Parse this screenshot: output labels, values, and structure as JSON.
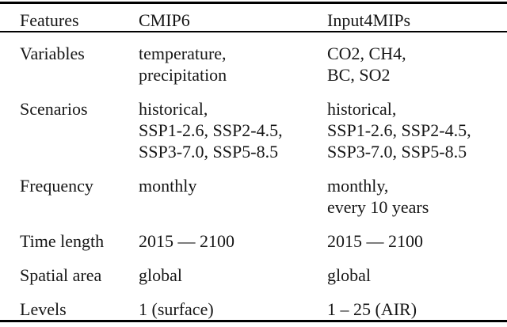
{
  "table": {
    "headers": [
      "Features",
      "CMIP6",
      "Input4MIPs"
    ],
    "rows": [
      {
        "feature": "Variables",
        "cmip6": "temperature,\nprecipitation",
        "input4mips": "CO2, CH4,\nBC, SO2"
      },
      {
        "feature": "Scenarios",
        "cmip6": "historical,\nSSP1-2.6, SSP2-4.5,\nSSP3-7.0, SSP5-8.5",
        "input4mips": "historical,\nSSP1-2.6, SSP2-4.5,\nSSP3-7.0, SSP5-8.5"
      },
      {
        "feature": "Frequency",
        "cmip6": "monthly",
        "input4mips": "monthly,\nevery 10 years"
      },
      {
        "feature": "Time length",
        "cmip6": "2015 — 2100",
        "input4mips": "2015 — 2100"
      },
      {
        "feature": "Spatial area",
        "cmip6": "global",
        "input4mips": "global"
      },
      {
        "feature": "Levels",
        "cmip6": "1 (surface)",
        "input4mips": "1 – 25 (AIR)"
      }
    ]
  },
  "colors": {
    "background": "#ffffff",
    "text": "#161616",
    "rule": "#000000"
  }
}
